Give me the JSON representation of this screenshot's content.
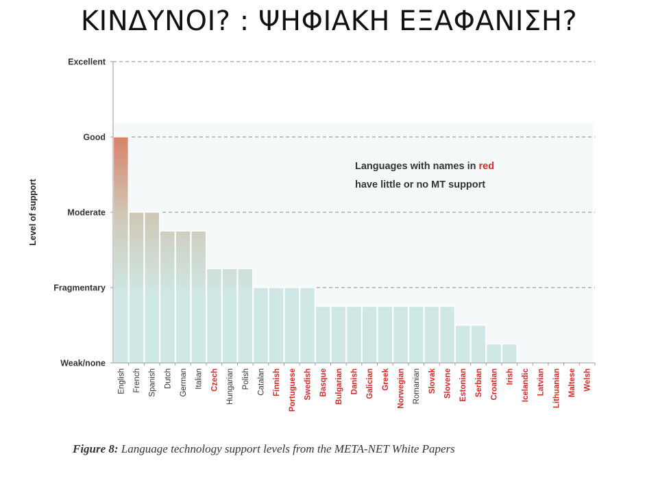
{
  "slide": {
    "title": "ΚΙΝΔΥΝΟΙ? : ΨΗΦΙΑΚΗ ΕΞΑΦΑΝΙΣΗ?"
  },
  "caption": {
    "label": "Figure 8:",
    "text": "Language technology support levels from the META-NET White Papers"
  },
  "colors": {
    "red_name": "#d42b2b",
    "black_name": "#333333",
    "bar_top_high": "#d9826a",
    "bar_top_mid": "#cfc7b4",
    "bar_bottom": "#cfe8e6",
    "bar_stroke": "#ffffff",
    "grid": "#888888",
    "panel_bg": "#f6f9f9"
  },
  "chart_data": {
    "type": "bar",
    "title": "",
    "xlabel": "",
    "ylabel": "Level of support",
    "ylim": [
      0,
      4
    ],
    "yticks": [
      {
        "value": 0,
        "label": "Weak/none"
      },
      {
        "value": 1,
        "label": "Fragmentary"
      },
      {
        "value": 2,
        "label": "Moderate"
      },
      {
        "value": 3,
        "label": "Good"
      },
      {
        "value": 4,
        "label": "Excellent"
      }
    ],
    "grid": "dashed horizontal at each level",
    "annotation": {
      "line1_prefix": "Languages with names in ",
      "line1_red": "red",
      "line2": "have little or no MT support"
    },
    "categories": [
      "English",
      "French",
      "Spanish",
      "Dutch",
      "German",
      "Italian",
      "Czech",
      "Hungarian",
      "Polish",
      "Catalan",
      "Finnish",
      "Portuguese",
      "Swedish",
      "Basque",
      "Bulgarian",
      "Danish",
      "Galician",
      "Greek",
      "Norwegian",
      "Romanian",
      "Slovak",
      "Slovene",
      "Estonian",
      "Serbian",
      "Croatian",
      "Irish",
      "Icelandic",
      "Latvian",
      "Lithuanian",
      "Maltese",
      "Welsh"
    ],
    "values": [
      3.0,
      2.0,
      2.0,
      1.75,
      1.75,
      1.75,
      1.25,
      1.25,
      1.25,
      1.0,
      1.0,
      1.0,
      1.0,
      0.75,
      0.75,
      0.75,
      0.75,
      0.75,
      0.75,
      0.75,
      0.75,
      0.75,
      0.5,
      0.5,
      0.25,
      0.25,
      0,
      0,
      0,
      0,
      0
    ],
    "little_or_no_mt_support": [
      false,
      false,
      false,
      false,
      false,
      false,
      true,
      false,
      false,
      false,
      true,
      true,
      true,
      true,
      true,
      true,
      true,
      true,
      true,
      false,
      true,
      true,
      true,
      true,
      true,
      true,
      true,
      true,
      true,
      true,
      true
    ]
  }
}
